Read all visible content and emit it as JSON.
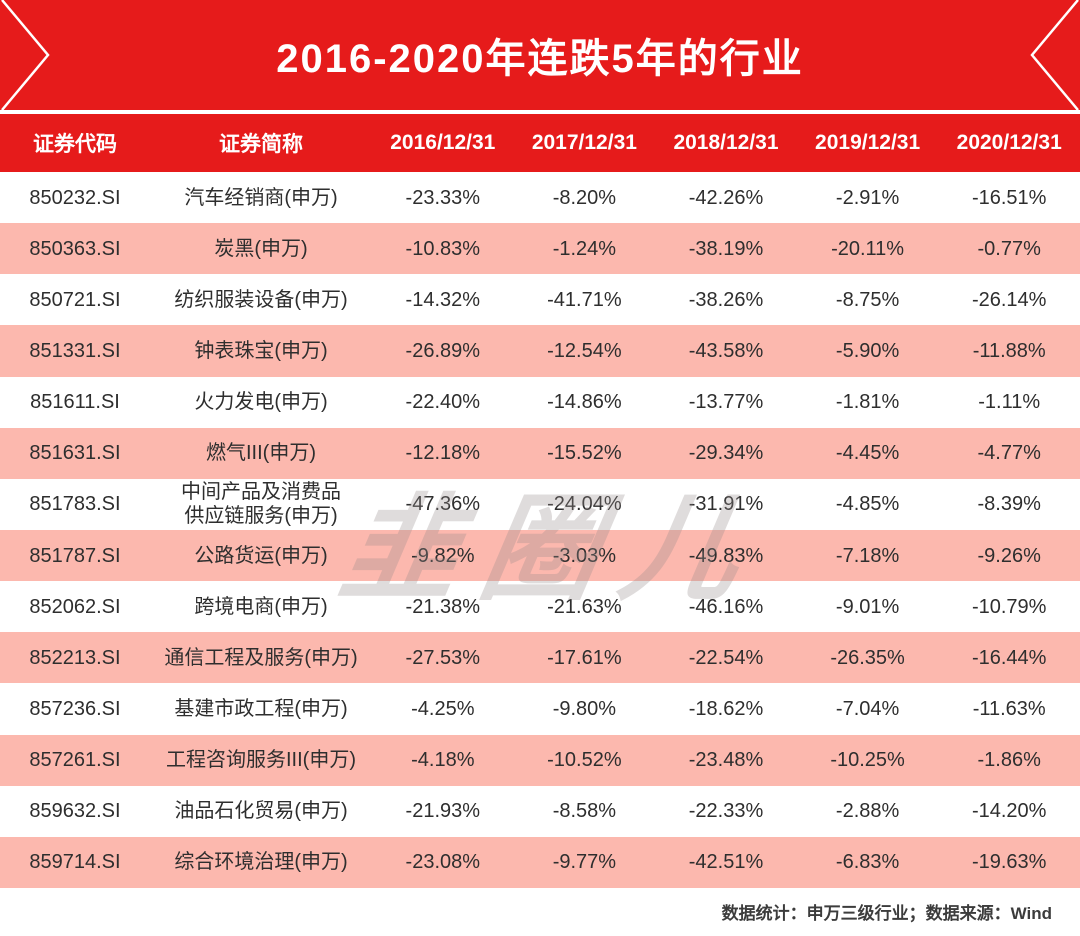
{
  "banner": {
    "title": "2016-2020年连跌5年的行业"
  },
  "chart_data": {
    "type": "table",
    "title": "2016-2020年连跌5年的行业",
    "columns": [
      "证券代码",
      "证券简称",
      "2016/12/31",
      "2017/12/31",
      "2018/12/31",
      "2019/12/31",
      "2020/12/31"
    ],
    "rows": [
      [
        "850232.SI",
        "汽车经销商(申万)",
        "-23.33%",
        "-8.20%",
        "-42.26%",
        "-2.91%",
        "-16.51%"
      ],
      [
        "850363.SI",
        "炭黑(申万)",
        "-10.83%",
        "-1.24%",
        "-38.19%",
        "-20.11%",
        "-0.77%"
      ],
      [
        "850721.SI",
        "纺织服装设备(申万)",
        "-14.32%",
        "-41.71%",
        "-38.26%",
        "-8.75%",
        "-26.14%"
      ],
      [
        "851331.SI",
        "钟表珠宝(申万)",
        "-26.89%",
        "-12.54%",
        "-43.58%",
        "-5.90%",
        "-11.88%"
      ],
      [
        "851611.SI",
        "火力发电(申万)",
        "-22.40%",
        "-14.86%",
        "-13.77%",
        "-1.81%",
        "-1.11%"
      ],
      [
        "851631.SI",
        "燃气III(申万)",
        "-12.18%",
        "-15.52%",
        "-29.34%",
        "-4.45%",
        "-4.77%"
      ],
      [
        "851783.SI",
        "中间产品及消费品\n供应链服务(申万)",
        "-47.36%",
        "-24.04%",
        "-31.91%",
        "-4.85%",
        "-8.39%"
      ],
      [
        "851787.SI",
        "公路货运(申万)",
        "-9.82%",
        "-3.03%",
        "-49.83%",
        "-7.18%",
        "-9.26%"
      ],
      [
        "852062.SI",
        "跨境电商(申万)",
        "-21.38%",
        "-21.63%",
        "-46.16%",
        "-9.01%",
        "-10.79%"
      ],
      [
        "852213.SI",
        "通信工程及服务(申万)",
        "-27.53%",
        "-17.61%",
        "-22.54%",
        "-26.35%",
        "-16.44%"
      ],
      [
        "857236.SI",
        "基建市政工程(申万)",
        "-4.25%",
        "-9.80%",
        "-18.62%",
        "-7.04%",
        "-11.63%"
      ],
      [
        "857261.SI",
        "工程咨询服务III(申万)",
        "-4.18%",
        "-10.52%",
        "-23.48%",
        "-10.25%",
        "-1.86%"
      ],
      [
        "859632.SI",
        "油品石化贸易(申万)",
        "-21.93%",
        "-8.58%",
        "-22.33%",
        "-2.88%",
        "-14.20%"
      ],
      [
        "859714.SI",
        "综合环境治理(申万)",
        "-23.08%",
        "-9.77%",
        "-42.51%",
        "-6.83%",
        "-19.63%"
      ]
    ]
  },
  "watermark": {
    "text": "韭圈儿"
  },
  "footer": {
    "text": "数据统计：申万三级行业；数据来源：Wind"
  },
  "colors": {
    "banner_red": "#E61B1B",
    "row_pink": "#FCB8AE",
    "header_text": "#FFFFFF",
    "cell_text": "#2E2E2E"
  }
}
